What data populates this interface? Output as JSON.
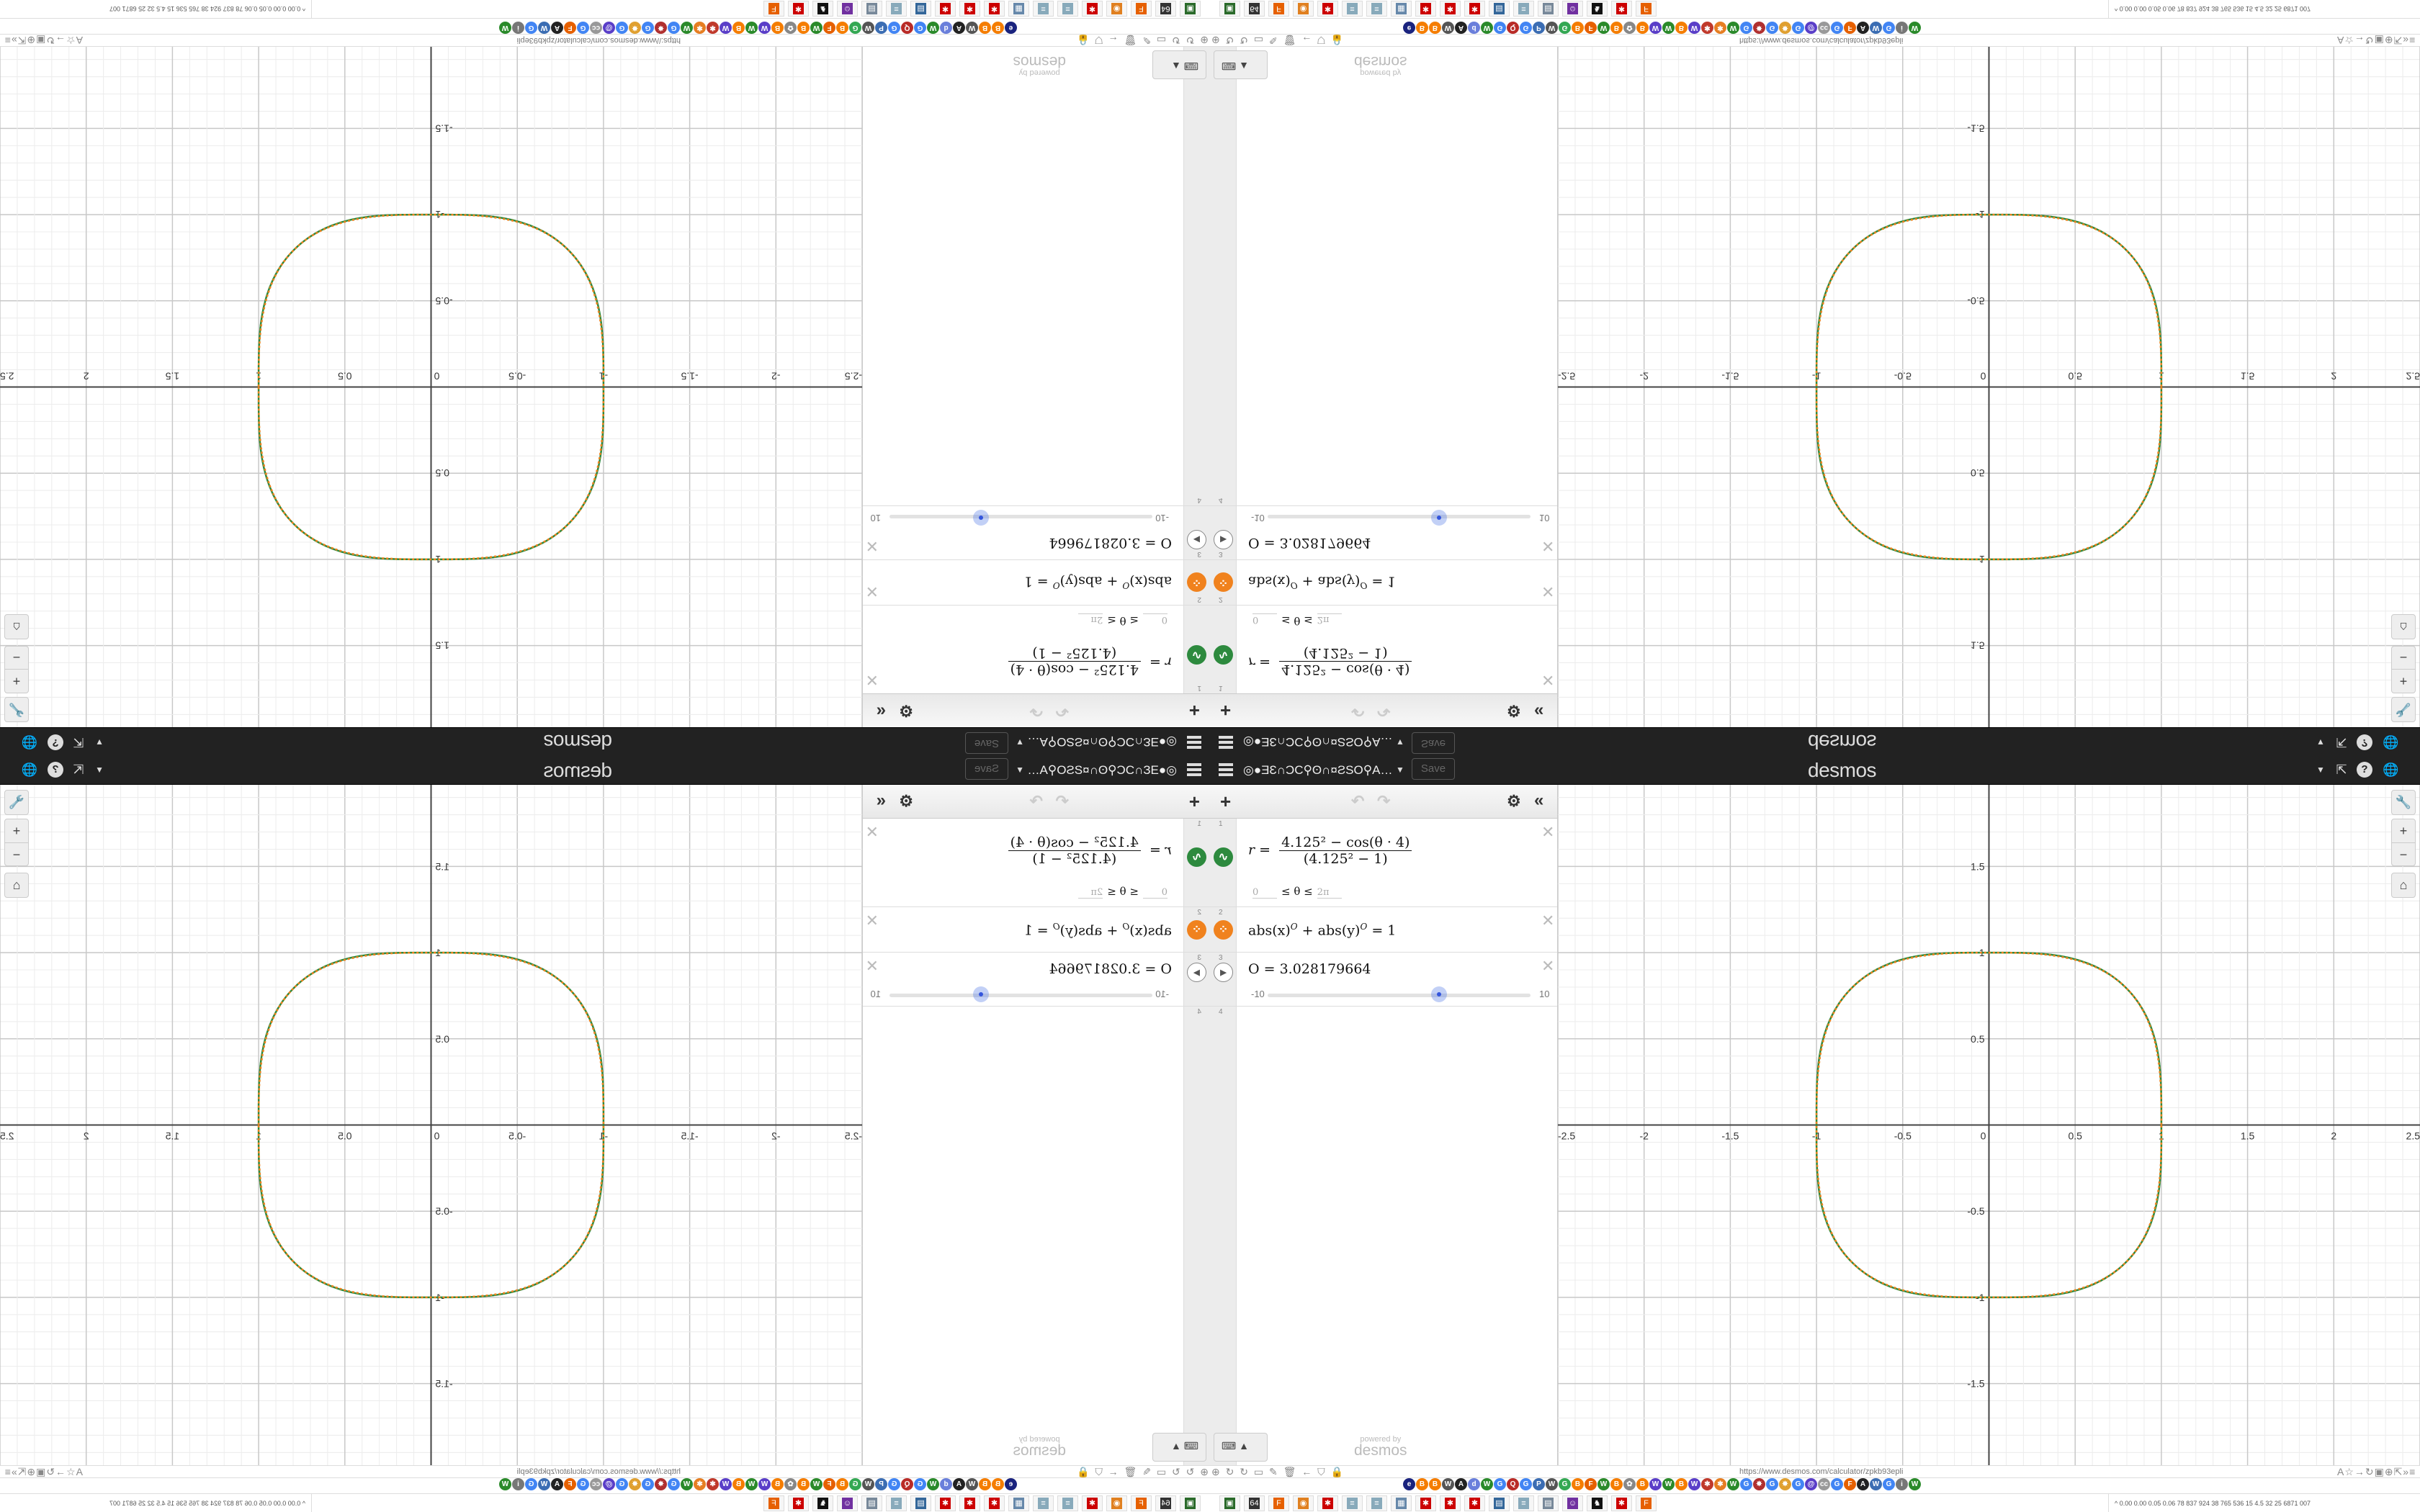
{
  "header": {
    "title": "◎●ƎƐ∩ƆC⚲ʘ∩¤ƧSO⚲A…",
    "save_label": "Save",
    "logo": "desmos",
    "caret": "▼",
    "icons": [
      "share-icon",
      "help-icon",
      "globe-icon"
    ]
  },
  "toolbar": {
    "add": "+",
    "undo": "↶",
    "redo": "↷",
    "settings": "⚙",
    "collapse": "«"
  },
  "expressions": [
    {
      "index": "1",
      "color": "#2d8a3e",
      "lhs": "r =",
      "numerator": "4.125² − cos(θ · 4)",
      "denominator": "(4.125² − 1)",
      "domain_min": "0",
      "domain_op": "≤ θ ≤",
      "domain_max": "2π"
    },
    {
      "index": "2",
      "color": "#f0821e",
      "term1": "abs(x)",
      "exp1": "O",
      "term2": "+ abs(y)",
      "exp2": "O",
      "rhs": "= 1"
    },
    {
      "index": "3",
      "text": "O = 3.028179664",
      "slider_min": "-10",
      "slider_max": "10",
      "value": 3.028179664
    },
    {
      "index": "4"
    }
  ],
  "keyboard": {
    "label": "⌨ ▲"
  },
  "powered": {
    "line1": "powered by",
    "line2": "desmos"
  },
  "graph_tools": {
    "wrench": "🔧",
    "zoom_in": "+",
    "zoom_out": "−",
    "home": "⌂"
  },
  "graph": {
    "xlim": [
      -2.5,
      2.5
    ],
    "ylim": [
      -1.98,
      1.98
    ],
    "x_ticks": [
      "-2.5",
      "-2",
      "-1.5",
      "-1",
      "-0.5",
      "0",
      "0.5",
      "1",
      "1.5",
      "2",
      "2.5"
    ],
    "y_ticks": [
      "1.5",
      "1",
      "0.5",
      "-0.5",
      "-1",
      "-1.5"
    ],
    "grid": true,
    "polar_color": "#2d8a3e",
    "implicit_color": "#f0821e"
  },
  "browser": {
    "url": "https://www.desmos.com/calculator/zpkb93epli",
    "nav_icons": "⊕ ↻ ↻ ▭ ✎ 🗑 ← ⛉ 🔒",
    "right_icons": "A☆→↻▣⊕⇱»≡",
    "bookmarks": [
      {
        "g": "e",
        "c": "#1a237e"
      },
      {
        "g": "B",
        "c": "#f57d00"
      },
      {
        "g": "B",
        "c": "#f57d00"
      },
      {
        "g": "W",
        "c": "#555"
      },
      {
        "g": "A",
        "c": "#222"
      },
      {
        "g": "d",
        "c": "#6a7fdb"
      },
      {
        "g": "W",
        "c": "#2a8a2a"
      },
      {
        "g": "G",
        "c": "#4285f4"
      },
      {
        "g": "Q",
        "c": "#b92b27"
      },
      {
        "g": "G",
        "c": "#4285f4"
      },
      {
        "g": "P",
        "c": "#3b6db3"
      },
      {
        "g": "W",
        "c": "#555"
      },
      {
        "g": "G",
        "c": "#34a853"
      },
      {
        "g": "B",
        "c": "#f57d00"
      },
      {
        "g": "F",
        "c": "#e66000"
      },
      {
        "g": "W",
        "c": "#2a8a2a"
      },
      {
        "g": "B",
        "c": "#f57d00"
      },
      {
        "g": "✿",
        "c": "#888"
      },
      {
        "g": "B",
        "c": "#f57d00"
      },
      {
        "g": "W",
        "c": "#5a3ec8"
      },
      {
        "g": "W",
        "c": "#2a8a2a"
      },
      {
        "g": "B",
        "c": "#f57d00"
      },
      {
        "g": "W",
        "c": "#5a3ec8"
      },
      {
        "g": "✱",
        "c": "#c0392b"
      },
      {
        "g": "✱",
        "c": "#e67e22"
      },
      {
        "g": "W",
        "c": "#2a8a2a"
      },
      {
        "g": "G",
        "c": "#4285f4"
      },
      {
        "g": "✸",
        "c": "#b03030"
      },
      {
        "g": "G",
        "c": "#4285f4"
      },
      {
        "g": "✸",
        "c": "#e0a030"
      },
      {
        "g": "G",
        "c": "#4285f4"
      },
      {
        "g": "@",
        "c": "#5a3ec8"
      },
      {
        "g": "cc",
        "c": "#999"
      },
      {
        "g": "G",
        "c": "#4285f4"
      },
      {
        "g": "F",
        "c": "#e66000"
      },
      {
        "g": "A",
        "c": "#222"
      },
      {
        "g": "W",
        "c": "#3b6db3"
      },
      {
        "g": "G",
        "c": "#4285f4"
      },
      {
        "g": "i",
        "c": "#777"
      },
      {
        "g": "W",
        "c": "#2a8a2a"
      }
    ],
    "taskbar": [
      {
        "g": "▣",
        "c": "#2a6a2a"
      },
      {
        "g": "64",
        "c": "#333"
      },
      {
        "g": "F",
        "c": "#e66000"
      },
      {
        "g": "◉",
        "c": "#e08020"
      },
      {
        "g": "✱",
        "c": "#c00"
      },
      {
        "g": "≡",
        "c": "#8ab"
      },
      {
        "g": "≡",
        "c": "#8ab"
      },
      {
        "g": "▦",
        "c": "#68a"
      },
      {
        "g": "✱",
        "c": "#c00"
      },
      {
        "g": "✱",
        "c": "#c00"
      },
      {
        "g": "✱",
        "c": "#c00"
      },
      {
        "g": "▤",
        "c": "#369"
      },
      {
        "g": "≡",
        "c": "#8ab"
      },
      {
        "g": "▤",
        "c": "#789"
      },
      {
        "g": "☺",
        "c": "#7030a0"
      },
      {
        "g": "♞",
        "c": "#111"
      },
      {
        "g": "✱",
        "c": "#c00"
      },
      {
        "g": "F",
        "c": "#e66000"
      }
    ],
    "stats": "^ 0.00 0.00 0.05 0.06 78 837 924 38 765 536 15 4.5 32 25 6871 007"
  }
}
